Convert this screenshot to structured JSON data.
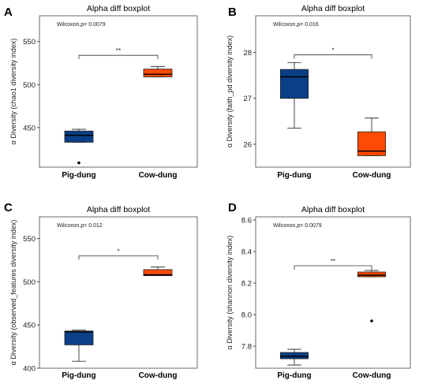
{
  "colors": {
    "pig": "#0b3f86",
    "cow": "#ff4a05",
    "axis": "#222222",
    "frame": "#444444"
  },
  "chart_data": [
    {
      "panel": "A",
      "type": "boxplot",
      "title": "Alpha diff boxplot",
      "ylabel": "α Diversity (chao1 diversity index)",
      "categories": [
        "Pig-dung",
        "Cow-dung"
      ],
      "stat_text": "Wilcoxon,p= 0.0079",
      "signif": "**",
      "ylim": [
        404,
        580
      ],
      "yticks": [
        450,
        500,
        550
      ],
      "yticklabels": [
        "450",
        "500",
        "550"
      ],
      "boxes": [
        {
          "category": "Pig-dung",
          "q1": 433,
          "median": 441,
          "q3": 446,
          "whisker_low": 433,
          "whisker_high": 448,
          "outliers": [
            409
          ]
        },
        {
          "category": "Cow-dung",
          "q1": 509,
          "median": 512,
          "q3": 518,
          "whisker_low": 509,
          "whisker_high": 521,
          "outliers": []
        }
      ],
      "bracket_y": 534
    },
    {
      "panel": "B",
      "type": "boxplot",
      "title": "Alpha diff boxplot",
      "ylabel": "α Diversity (faith_pd diversity index)",
      "categories": [
        "Pig-dung",
        "Cow-dung"
      ],
      "stat_text": "Wilcoxon,p= 0.016",
      "signif": "*",
      "ylim": [
        25.5,
        28.8
      ],
      "yticks": [
        26,
        27,
        28
      ],
      "yticklabels": [
        "26",
        "27",
        "28"
      ],
      "boxes": [
        {
          "category": "Pig-dung",
          "q1": 27.0,
          "median": 27.47,
          "q3": 27.63,
          "whisker_low": 26.35,
          "whisker_high": 27.78,
          "outliers": []
        },
        {
          "category": "Cow-dung",
          "q1": 25.75,
          "median": 25.85,
          "q3": 26.27,
          "whisker_low": 25.75,
          "whisker_high": 26.57,
          "outliers": []
        }
      ],
      "bracket_y": 27.95
    },
    {
      "panel": "C",
      "type": "boxplot",
      "title": "Alpha diff boxplot",
      "ylabel": "α Diversity (observed_features diversity index)",
      "categories": [
        "Pig-dung",
        "Cow-dung"
      ],
      "stat_text": "Wilcoxon,p= 0.012",
      "signif": "*",
      "ylim": [
        400,
        575
      ],
      "yticks": [
        400,
        450,
        500,
        550
      ],
      "yticklabels": [
        "400",
        "450",
        "500",
        "550"
      ],
      "boxes": [
        {
          "category": "Pig-dung",
          "q1": 427,
          "median": 442,
          "q3": 443,
          "whisker_low": 408,
          "whisker_high": 444,
          "outliers": []
        },
        {
          "category": "Cow-dung",
          "q1": 507,
          "median": 508,
          "q3": 514,
          "whisker_low": 507,
          "whisker_high": 517,
          "outliers": []
        }
      ],
      "bracket_y": 530
    },
    {
      "panel": "D",
      "type": "boxplot",
      "title": "Alpha diff boxplot",
      "ylabel": "α Diversity (shannon diversity index)",
      "categories": [
        "Pig-dung",
        "Cow-dung"
      ],
      "stat_text": "Wilcoxon,p= 0.0079",
      "signif": "**",
      "ylim": [
        7.66,
        8.62
      ],
      "yticks": [
        7.8,
        8.0,
        8.2,
        8.4,
        8.6
      ],
      "yticklabels": [
        "7.8",
        "8.0",
        "8.2",
        "8.4",
        "8.6"
      ],
      "boxes": [
        {
          "category": "Pig-dung",
          "q1": 7.72,
          "median": 7.735,
          "q3": 7.76,
          "whisker_low": 7.68,
          "whisker_high": 7.78,
          "outliers": []
        },
        {
          "category": "Cow-dung",
          "q1": 8.24,
          "median": 8.25,
          "q3": 8.27,
          "whisker_low": 8.24,
          "whisker_high": 8.28,
          "outliers": [
            7.96
          ]
        }
      ],
      "bracket_y": 8.31
    }
  ]
}
